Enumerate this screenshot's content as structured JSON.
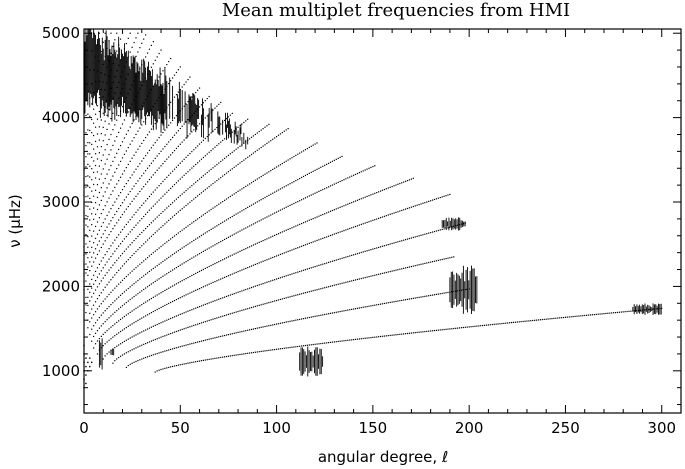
{
  "chart_data": {
    "type": "scatter",
    "title": "Mean multiplet frequencies from HMI",
    "xlabel": "angular degree, ℓ",
    "ylabel": "ν (μHz)",
    "xlim": [
      0,
      310
    ],
    "ylim": [
      500,
      5050
    ],
    "xticks": [
      0,
      50,
      100,
      150,
      200,
      250,
      300
    ],
    "yticks": [
      1000,
      2000,
      3000,
      4000,
      5000
    ],
    "grid": false,
    "legend": "none",
    "marker_color": "#000000",
    "ridges": [
      {
        "order": 1,
        "l_start": 37,
        "l_end": 300,
        "nu_start": 985,
        "nu_end": 1740
      },
      {
        "order": 2,
        "l_start": 22,
        "l_end": 200,
        "nu_start": 1040,
        "nu_end": 1970
      },
      {
        "order": 3,
        "l_start": 15,
        "l_end": 192,
        "nu_start": 1090,
        "nu_end": 2350
      },
      {
        "order": 4,
        "l_start": 10,
        "l_end": 198,
        "nu_start": 1140,
        "nu_end": 2750
      },
      {
        "order": 5,
        "l_start": 7,
        "l_end": 190,
        "nu_start": 1200,
        "nu_end": 3090
      },
      {
        "order": 6,
        "l_start": 5,
        "l_end": 171,
        "nu_start": 1270,
        "nu_end": 3280
      },
      {
        "order": 7,
        "l_start": 4,
        "l_end": 151,
        "nu_start": 1350,
        "nu_end": 3430
      },
      {
        "order": 8,
        "l_start": 3,
        "l_end": 134,
        "nu_start": 1430,
        "nu_end": 3540
      },
      {
        "order": 9,
        "l_start": 2,
        "l_end": 121,
        "nu_start": 1510,
        "nu_end": 3700
      },
      {
        "order": 10,
        "l_start": 2,
        "l_end": 106,
        "nu_start": 1600,
        "nu_end": 3870
      },
      {
        "order": 11,
        "l_start": 1,
        "l_end": 96,
        "nu_start": 1690,
        "nu_end": 3920
      },
      {
        "order": 12,
        "l_start": 1,
        "l_end": 85,
        "nu_start": 1780,
        "nu_end": 3980
      },
      {
        "order": 13,
        "l_start": 1,
        "l_end": 77,
        "nu_start": 1870,
        "nu_end": 4050
      },
      {
        "order": 14,
        "l_start": 0,
        "l_end": 71,
        "nu_start": 1960,
        "nu_end": 4180
      },
      {
        "order": 15,
        "l_start": 0,
        "l_end": 65,
        "nu_start": 2050,
        "nu_end": 4250
      },
      {
        "order": 16,
        "l_start": 0,
        "l_end": 60,
        "nu_start": 2150,
        "nu_end": 4350
      },
      {
        "order": 17,
        "l_start": 0,
        "l_end": 55,
        "nu_start": 2260,
        "nu_end": 4480
      },
      {
        "order": 18,
        "l_start": 0,
        "l_end": 50,
        "nu_start": 2370,
        "nu_end": 4600
      },
      {
        "order": 19,
        "l_start": 0,
        "l_end": 45,
        "nu_start": 2470,
        "nu_end": 4700
      },
      {
        "order": 20,
        "l_start": 0,
        "l_end": 40,
        "nu_start": 2570,
        "nu_end": 4800
      },
      {
        "order": 21,
        "l_start": 0,
        "l_end": 36,
        "nu_start": 2670,
        "nu_end": 4900
      },
      {
        "order": 22,
        "l_start": 0,
        "l_end": 32,
        "nu_start": 2770,
        "nu_end": 4980
      },
      {
        "order": 23,
        "l_start": 0,
        "l_end": 28,
        "nu_start": 2870,
        "nu_end": 5000
      },
      {
        "order": 24,
        "l_start": 0,
        "l_end": 24,
        "nu_start": 2970,
        "nu_end": 5000
      },
      {
        "order": 25,
        "l_start": 0,
        "l_end": 20,
        "nu_start": 3080,
        "nu_end": 5000
      },
      {
        "order": 26,
        "l_start": 0,
        "l_end": 17,
        "nu_start": 3180,
        "nu_end": 5000
      },
      {
        "order": 27,
        "l_start": 0,
        "l_end": 14,
        "nu_start": 3280,
        "nu_end": 5000
      },
      {
        "order": 28,
        "l_start": 0,
        "l_end": 11,
        "nu_start": 3380,
        "nu_end": 5000
      },
      {
        "order": 29,
        "l_start": 0,
        "l_end": 8,
        "nu_start": 3480,
        "nu_end": 5000
      },
      {
        "order": 30,
        "l_start": 0,
        "l_end": 5,
        "nu_start": 3580,
        "nu_end": 5000
      }
    ],
    "low_l_points": [
      {
        "l": 0,
        "nu": 800
      },
      {
        "l": 0,
        "nu": 900
      },
      {
        "l": 0,
        "nu": 1000
      },
      {
        "l": 0,
        "nu": 1100
      },
      {
        "l": 0,
        "nu": 1200
      },
      {
        "l": 0,
        "nu": 1300
      },
      {
        "l": 1,
        "nu": 850
      },
      {
        "l": 1,
        "nu": 950
      },
      {
        "l": 1,
        "nu": 1050
      },
      {
        "l": 1,
        "nu": 1150
      },
      {
        "l": 2,
        "nu": 1000
      },
      {
        "l": 2,
        "nu": 1100
      },
      {
        "l": 3,
        "nu": 1050
      },
      {
        "l": 3,
        "nu": 1150
      },
      {
        "l": 4,
        "nu": 1100
      }
    ],
    "error_clusters": [
      {
        "l_start": 112,
        "l_end": 124,
        "nu_center": 1110,
        "half_height": 180
      },
      {
        "l_start": 190,
        "l_end": 204,
        "nu_center": 1960,
        "half_height": 300
      },
      {
        "l_start": 186,
        "l_end": 198,
        "nu_center": 2740,
        "half_height": 80
      },
      {
        "l_start": 285,
        "l_end": 300,
        "nu_center": 1730,
        "half_height": 70
      },
      {
        "l_start": 8,
        "l_end": 10,
        "nu_center": 1200,
        "half_height": 200
      },
      {
        "l_start": 14,
        "l_end": 16,
        "nu_center": 1220,
        "half_height": 40
      }
    ],
    "high_nu_error_band": {
      "l_start": 0,
      "l_end": 85,
      "nu_low": 3700,
      "nu_high": 5050
    }
  }
}
